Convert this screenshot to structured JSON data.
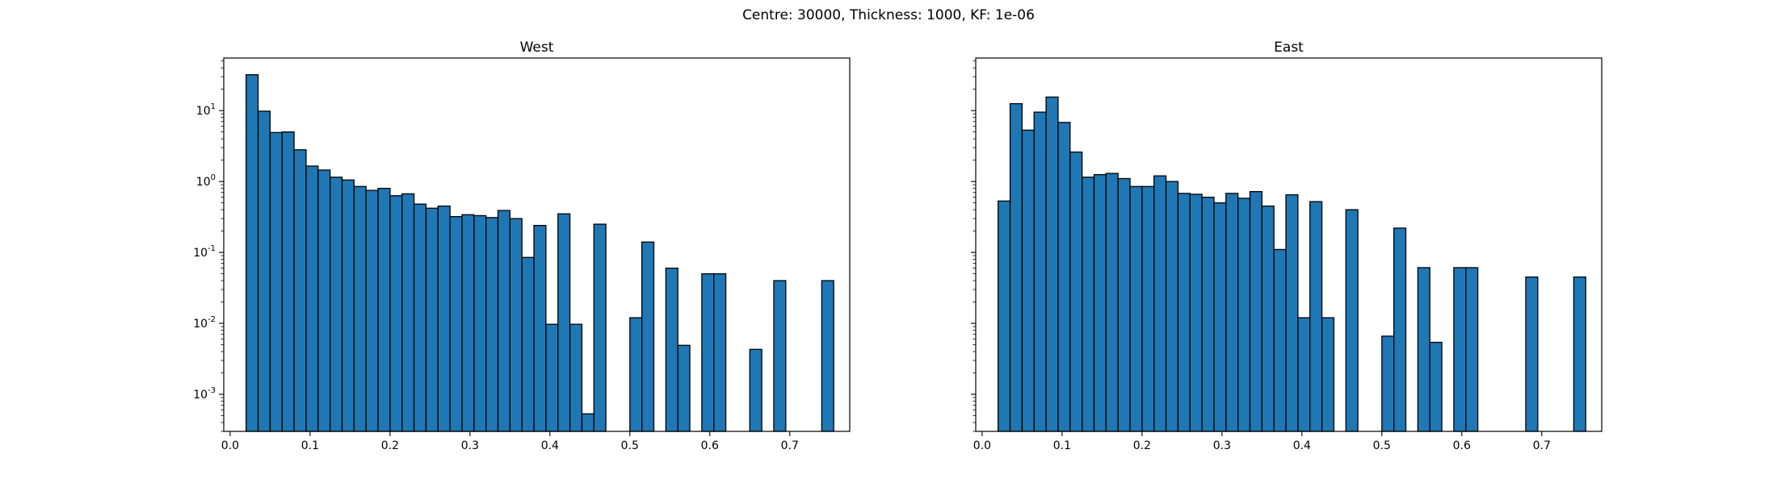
{
  "figure": {
    "title": "Centre: 30000, Thickness: 1000, KF: 1e-06"
  },
  "colors": {
    "bar_fill": "#1f77b4",
    "bar_edge": "#000000",
    "axes": "#000000",
    "background": "#ffffff"
  },
  "chart_data": [
    {
      "type": "bar",
      "title": "West",
      "xlabel": "",
      "ylabel": "",
      "yscale": "log",
      "xlim": [
        -0.008,
        0.775
      ],
      "ylim": [
        0.0003,
        55
      ],
      "bin_width": 0.015,
      "xticks": [
        0.0,
        0.1,
        0.2,
        0.3,
        0.4,
        0.5,
        0.6,
        0.7
      ],
      "xtick_labels": [
        "0.0",
        "0.1",
        "0.2",
        "0.3",
        "0.4",
        "0.5",
        "0.6",
        "0.7"
      ],
      "yticks": [
        0.001,
        0.01,
        0.1,
        1,
        10
      ],
      "ytick_labels": [
        "10^-3",
        "10^-2",
        "10^-1",
        "10^0",
        "10^1"
      ],
      "grid": false,
      "bars": [
        {
          "x": 0.0275,
          "y": 32
        },
        {
          "x": 0.0425,
          "y": 9.8
        },
        {
          "x": 0.0575,
          "y": 4.9
        },
        {
          "x": 0.0725,
          "y": 5.0
        },
        {
          "x": 0.0875,
          "y": 2.8
        },
        {
          "x": 0.1025,
          "y": 1.65
        },
        {
          "x": 0.1175,
          "y": 1.45
        },
        {
          "x": 0.1325,
          "y": 1.15
        },
        {
          "x": 0.1475,
          "y": 1.05
        },
        {
          "x": 0.1625,
          "y": 0.85
        },
        {
          "x": 0.1775,
          "y": 0.75
        },
        {
          "x": 0.1925,
          "y": 0.8
        },
        {
          "x": 0.2075,
          "y": 0.63
        },
        {
          "x": 0.2225,
          "y": 0.67
        },
        {
          "x": 0.2375,
          "y": 0.48
        },
        {
          "x": 0.2525,
          "y": 0.42
        },
        {
          "x": 0.2675,
          "y": 0.45
        },
        {
          "x": 0.2825,
          "y": 0.32
        },
        {
          "x": 0.2975,
          "y": 0.34
        },
        {
          "x": 0.3125,
          "y": 0.33
        },
        {
          "x": 0.3275,
          "y": 0.31
        },
        {
          "x": 0.3425,
          "y": 0.39
        },
        {
          "x": 0.3575,
          "y": 0.3
        },
        {
          "x": 0.3725,
          "y": 0.085
        },
        {
          "x": 0.3875,
          "y": 0.24
        },
        {
          "x": 0.4025,
          "y": 0.0097
        },
        {
          "x": 0.4175,
          "y": 0.35
        },
        {
          "x": 0.4325,
          "y": 0.0097
        },
        {
          "x": 0.4475,
          "y": 0.00053
        },
        {
          "x": 0.4625,
          "y": 0.25
        },
        {
          "x": 0.5075,
          "y": 0.012
        },
        {
          "x": 0.5225,
          "y": 0.14
        },
        {
          "x": 0.5525,
          "y": 0.06
        },
        {
          "x": 0.5675,
          "y": 0.0049
        },
        {
          "x": 0.5975,
          "y": 0.05
        },
        {
          "x": 0.6125,
          "y": 0.05
        },
        {
          "x": 0.6575,
          "y": 0.0043
        },
        {
          "x": 0.6875,
          "y": 0.04
        },
        {
          "x": 0.7475,
          "y": 0.04
        }
      ]
    },
    {
      "type": "bar",
      "title": "East",
      "xlabel": "",
      "ylabel": "",
      "yscale": "log",
      "xlim": [
        -0.008,
        0.775
      ],
      "ylim": [
        0.0003,
        55
      ],
      "bin_width": 0.015,
      "xticks": [
        0.0,
        0.1,
        0.2,
        0.3,
        0.4,
        0.5,
        0.6,
        0.7
      ],
      "xtick_labels": [
        "0.0",
        "0.1",
        "0.2",
        "0.3",
        "0.4",
        "0.5",
        "0.6",
        "0.7"
      ],
      "yticks": [
        0.001,
        0.01,
        0.1,
        1,
        10
      ],
      "ytick_labels": [],
      "grid": false,
      "bars": [
        {
          "x": 0.0275,
          "y": 0.53
        },
        {
          "x": 0.0425,
          "y": 12.5
        },
        {
          "x": 0.0575,
          "y": 5.3
        },
        {
          "x": 0.0725,
          "y": 9.5
        },
        {
          "x": 0.0875,
          "y": 15.5
        },
        {
          "x": 0.1025,
          "y": 6.8
        },
        {
          "x": 0.1175,
          "y": 2.6
        },
        {
          "x": 0.1325,
          "y": 1.15
        },
        {
          "x": 0.1475,
          "y": 1.25
        },
        {
          "x": 0.1625,
          "y": 1.3
        },
        {
          "x": 0.1775,
          "y": 1.1
        },
        {
          "x": 0.1925,
          "y": 0.85
        },
        {
          "x": 0.2075,
          "y": 0.85
        },
        {
          "x": 0.2225,
          "y": 1.2
        },
        {
          "x": 0.2375,
          "y": 1.0
        },
        {
          "x": 0.2525,
          "y": 0.68
        },
        {
          "x": 0.2675,
          "y": 0.66
        },
        {
          "x": 0.2825,
          "y": 0.6
        },
        {
          "x": 0.2975,
          "y": 0.5
        },
        {
          "x": 0.3125,
          "y": 0.68
        },
        {
          "x": 0.3275,
          "y": 0.58
        },
        {
          "x": 0.3425,
          "y": 0.72
        },
        {
          "x": 0.3575,
          "y": 0.45
        },
        {
          "x": 0.3725,
          "y": 0.11
        },
        {
          "x": 0.3875,
          "y": 0.65
        },
        {
          "x": 0.4025,
          "y": 0.012
        },
        {
          "x": 0.4175,
          "y": 0.52
        },
        {
          "x": 0.4325,
          "y": 0.012
        },
        {
          "x": 0.4625,
          "y": 0.4
        },
        {
          "x": 0.5075,
          "y": 0.0066
        },
        {
          "x": 0.5225,
          "y": 0.22
        },
        {
          "x": 0.5525,
          "y": 0.061
        },
        {
          "x": 0.5675,
          "y": 0.0054
        },
        {
          "x": 0.5975,
          "y": 0.061
        },
        {
          "x": 0.6125,
          "y": 0.061
        },
        {
          "x": 0.6875,
          "y": 0.045
        },
        {
          "x": 0.7475,
          "y": 0.045
        }
      ]
    }
  ]
}
